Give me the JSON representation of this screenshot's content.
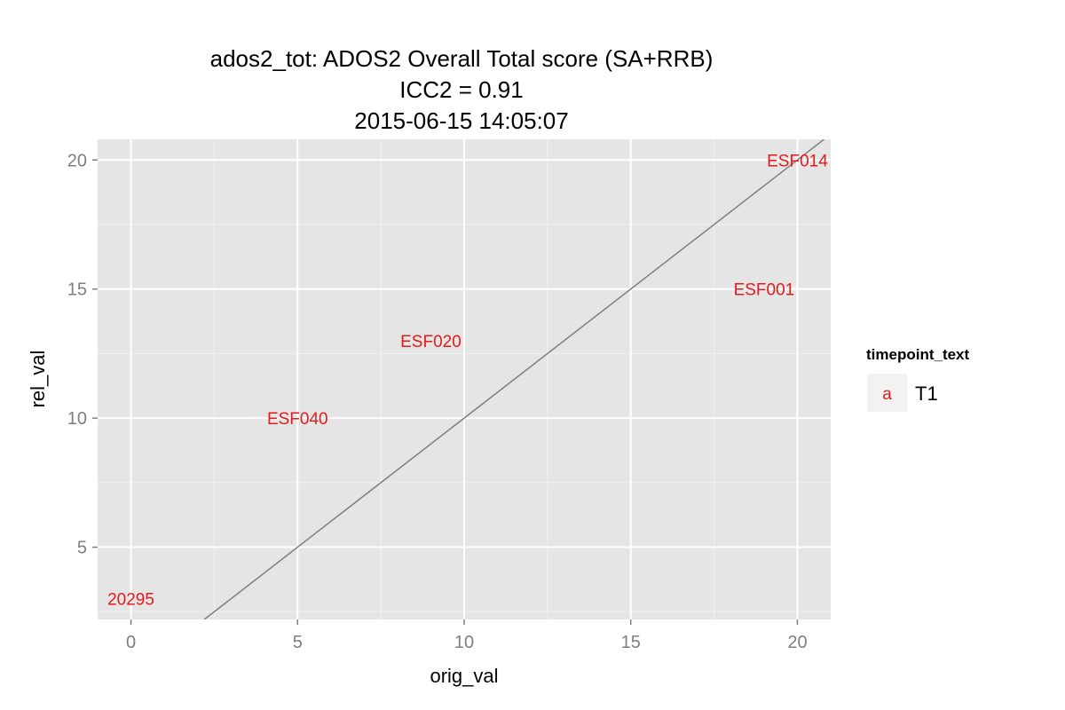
{
  "chart_data": {
    "type": "scatter",
    "title_lines": [
      "ados2_tot: ADOS2 Overall Total score (SA+RRB)",
      "ICC2 = 0.91",
      "2015-06-15 14:05:07"
    ],
    "xlabel": "orig_val",
    "ylabel": "rel_val",
    "xlim": [
      -1,
      21
    ],
    "ylim": [
      2.2,
      20.8
    ],
    "x_ticks": [
      0,
      5,
      10,
      15,
      20
    ],
    "y_ticks": [
      5,
      10,
      15,
      20
    ],
    "x_tick_labels": [
      "0",
      "5",
      "10",
      "15",
      "20"
    ],
    "y_tick_labels": [
      "5",
      "10",
      "15",
      "20"
    ],
    "grid": true,
    "reference_line": {
      "type": "identity",
      "slope": 1,
      "intercept": 0,
      "color": "#7f7f7f"
    },
    "series": [
      {
        "name": "T1",
        "color": "#e41a1c",
        "points": [
          {
            "x": 0,
            "y": 3,
            "label": "20295"
          },
          {
            "x": 5,
            "y": 10,
            "label": "ESF040"
          },
          {
            "x": 9,
            "y": 13,
            "label": "ESF020"
          },
          {
            "x": 19,
            "y": 15,
            "label": "ESF001"
          },
          {
            "x": 20,
            "y": 20,
            "label": "ESF014"
          }
        ]
      }
    ],
    "legend": {
      "title": "timepoint_text",
      "position": "right",
      "entries": [
        {
          "key": "a",
          "label": "T1",
          "color": "#e41a1c"
        }
      ]
    },
    "panel_background": "#e5e5e5",
    "grid_color": "#ffffff"
  }
}
